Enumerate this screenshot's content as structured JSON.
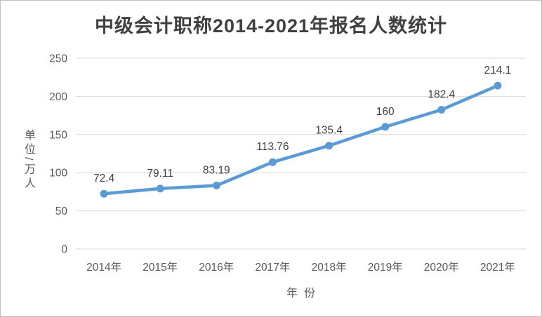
{
  "chart_data": {
    "type": "line",
    "title": "中级会计职称2014-2021年报名人数统计",
    "xlabel": "年份",
    "ylabel": "单位/万人",
    "categories": [
      "2014年",
      "2015年",
      "2016年",
      "2017年",
      "2018年",
      "2019年",
      "2020年",
      "2021年"
    ],
    "values": [
      72.4,
      79.11,
      83.19,
      113.76,
      135.4,
      160,
      182.4,
      214.1
    ],
    "data_labels": [
      "72.4",
      "79.11",
      "83.19",
      "113.76",
      "135.4",
      "160",
      "182.4",
      "214.1"
    ],
    "ylim": [
      0,
      250
    ],
    "yticks": [
      0,
      50,
      100,
      150,
      200,
      250
    ],
    "grid": true,
    "legend": false,
    "colors": {
      "line": "#5B9BD5",
      "marker": "#5B9BD5",
      "grid": "#D9D9D9",
      "title_text": "#404040",
      "tick_text": "#595959",
      "label_text": "#404040",
      "border": "#BFBFBF",
      "background": "#FFFFFF"
    }
  }
}
